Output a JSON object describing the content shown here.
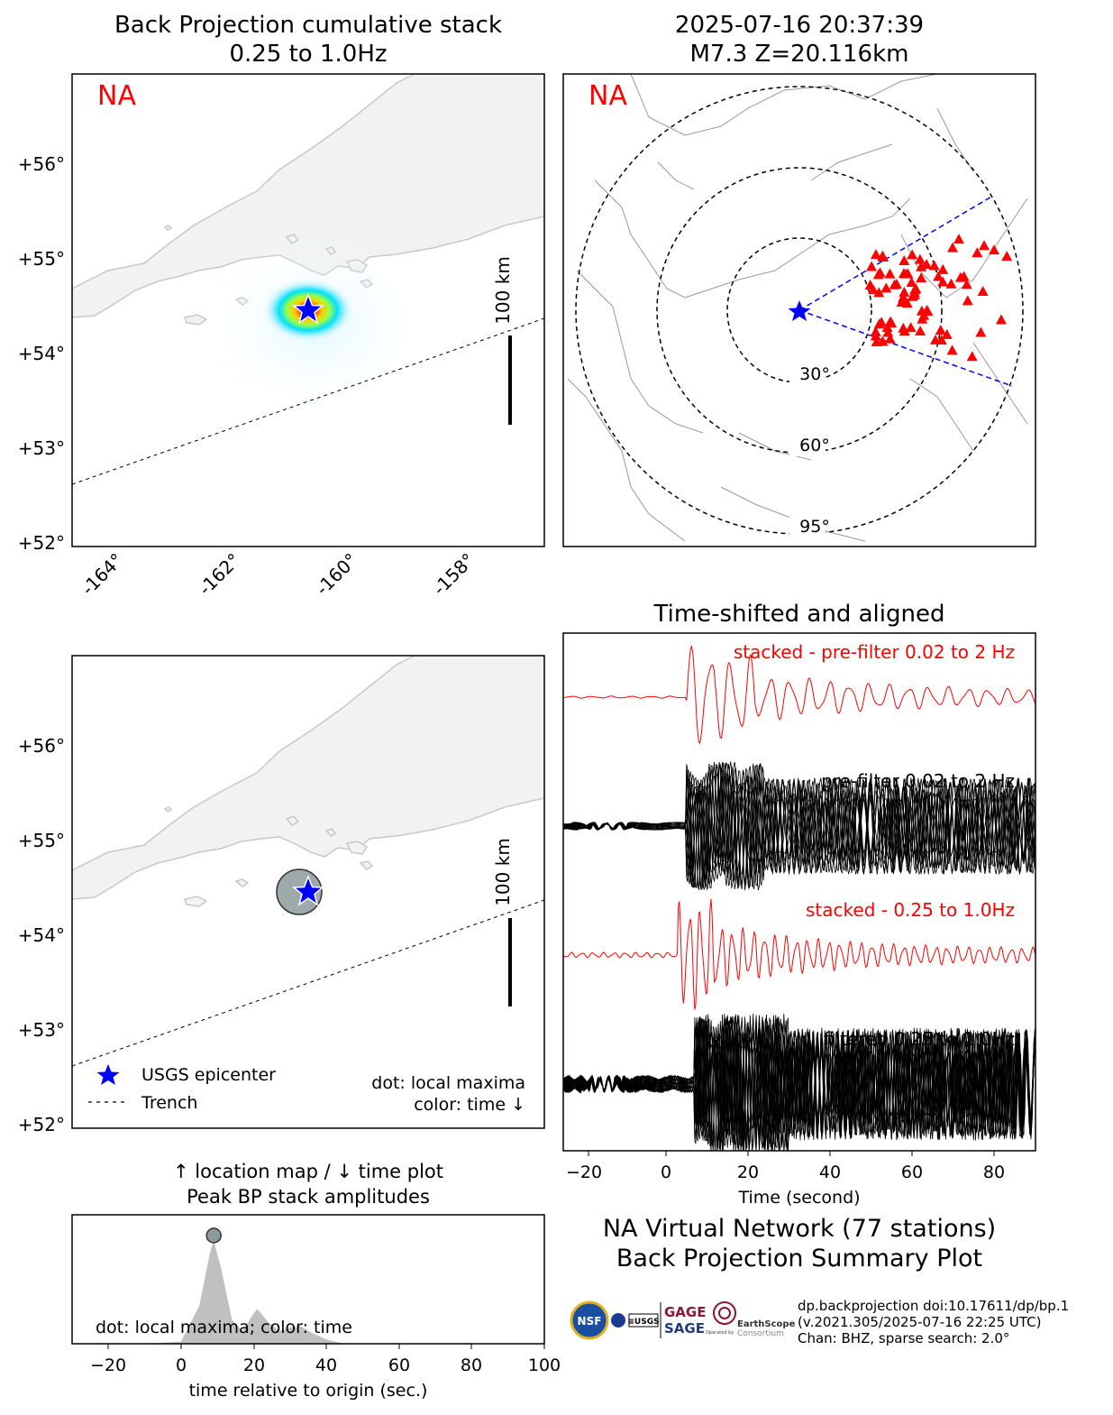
{
  "bp_map": {
    "title_line1": "Back Projection cumulative stack",
    "title_line2": "0.25 to 1.0Hz",
    "network_tag": "NA",
    "lat_ticks": [
      "+56°",
      "+55°",
      "+54°",
      "+53°",
      "+52°"
    ],
    "lon_ticks": [
      "-164°",
      "-162°",
      "-160°",
      "-158°"
    ],
    "scale_label": "100 km"
  },
  "global_map": {
    "title_line1": "2025-07-16 20:37:39",
    "title_line2": "M7.3 Z=20.116km",
    "network_tag": "NA",
    "ring_labels": [
      "30°",
      "60°",
      "95°"
    ]
  },
  "maxima_map": {
    "lat_ticks": [
      "+56°",
      "+55°",
      "+54°",
      "+53°",
      "+52°"
    ],
    "scale_label": "100 km",
    "legend_epicenter": "USGS epicenter",
    "legend_trench": "Trench",
    "note_line1": "dot: local maxima",
    "note_line2": "color: time ↓"
  },
  "waveforms": {
    "title": "Time-shifted and aligned",
    "label_stacked_pre": "stacked - pre-filter 0.02 to 2 Hz",
    "label_pre": "pre-filter 0.02 to 2 Hz",
    "label_stacked_filt": "stacked - 0.25 to 1.0Hz",
    "label_filt": "filtered 0.25 to 1.0Hz",
    "xlabel": "Time (second)",
    "xticks": [
      "−20",
      "0",
      "20",
      "40",
      "60",
      "80"
    ]
  },
  "peak_plot": {
    "title_line1": "↑ location map / ↓ time plot",
    "title_line2": "Peak BP stack amplitudes",
    "note": "dot: local maxima; color: time",
    "xlabel": "time relative to origin (sec.)",
    "xticks": [
      "−20",
      "0",
      "20",
      "40",
      "60",
      "80",
      "100"
    ]
  },
  "summary": {
    "line1": "NA Virtual Network (77 stations)",
    "line2": "Back Projection Summary Plot"
  },
  "credits": {
    "line1": "dp.backprojection doi:10.17611/dp/bp.1",
    "line2": "(v.2021.305/2025-07-16 22:25 UTC)",
    "line3": "Chan: BHZ, sparse search: 2.0°"
  },
  "logos": {
    "nsf": "NSF",
    "usgs": "≡USGS",
    "gage": "GAGE",
    "sage": "SAGE",
    "earthscope": "EarthScope",
    "operated": "Operated by",
    "consortium": "Consortium"
  },
  "colors": {
    "network_tag": "#ff0000",
    "epicenter": "#0000ff",
    "stations": "#ff0000",
    "coast_fill": "#f2f2f2",
    "coast_line": "#c8c8c8",
    "stacked_trace": "#ff0000",
    "peak_fill": "#c0c0c0"
  },
  "chart_data": [
    {
      "type": "heatmap",
      "description_key": "bp_map",
      "x_range_deg": [
        -165,
        -157
      ],
      "y_range_deg": [
        52,
        57
      ],
      "epicenter": {
        "lon": -160.0,
        "lat": 54.45
      },
      "peak": {
        "lon": -160.1,
        "lat": 54.45
      }
    },
    {
      "type": "scatter",
      "description_key": "global_map",
      "rings_deg": [
        30,
        60,
        95
      ],
      "station_count": 77
    },
    {
      "type": "line",
      "description_key": "waveforms",
      "xlim": [
        -25,
        90
      ],
      "series_count": 4
    },
    {
      "type": "area",
      "description_key": "peak_plot",
      "xlim": [
        -30,
        100
      ],
      "x": [
        -10,
        0,
        5,
        8,
        9,
        11,
        14,
        17,
        20,
        21,
        24,
        27,
        30,
        33,
        36,
        40,
        45
      ],
      "values": [
        0,
        0.02,
        0.35,
        0.85,
        0.95,
        0.7,
        0.22,
        0.12,
        0.28,
        0.32,
        0.2,
        0.12,
        0.15,
        0.16,
        0.1,
        0.04,
        0
      ],
      "local_maxima": [
        {
          "x": 9,
          "y": 0.95
        }
      ]
    }
  ]
}
